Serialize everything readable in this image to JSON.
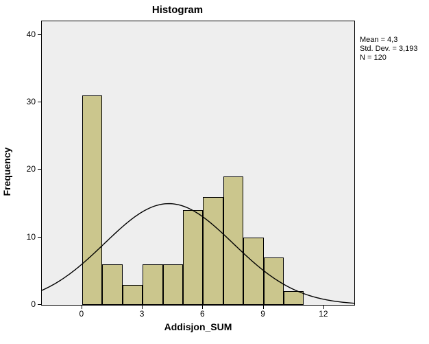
{
  "chart": {
    "type": "histogram",
    "title": "Histogram",
    "title_fontsize": 15,
    "xlabel": "Addisjon_SUM",
    "ylabel": "Frequency",
    "label_fontsize": 14,
    "background_color": "#ffffff",
    "plot_background": "#eeeeee",
    "border_color": "#000000",
    "bar_color": "#cbc68d",
    "bar_border": "#000000",
    "curve_color": "#000000",
    "curve_width": 1.4,
    "x_min": -2.0,
    "x_max": 13.5,
    "y_min": 0,
    "y_max": 42,
    "x_ticks": [
      0,
      3,
      6,
      9,
      12
    ],
    "y_ticks": [
      0,
      10,
      20,
      30,
      40
    ],
    "tick_fontsize": 12,
    "bars": [
      {
        "x_start": 0,
        "x_end": 1,
        "freq": 31
      },
      {
        "x_start": 1,
        "x_end": 2,
        "freq": 6
      },
      {
        "x_start": 2,
        "x_end": 3,
        "freq": 3
      },
      {
        "x_start": 3,
        "x_end": 4,
        "freq": 6
      },
      {
        "x_start": 4,
        "x_end": 5,
        "freq": 6
      },
      {
        "x_start": 5,
        "x_end": 6,
        "freq": 14
      },
      {
        "x_start": 6,
        "x_end": 7,
        "freq": 16
      },
      {
        "x_start": 7,
        "x_end": 8,
        "freq": 19
      },
      {
        "x_start": 8,
        "x_end": 9,
        "freq": 10
      },
      {
        "x_start": 9,
        "x_end": 10,
        "freq": 7
      },
      {
        "x_start": 10,
        "x_end": 11,
        "freq": 2
      }
    ],
    "normal_curve": {
      "mean": 4.3,
      "std_dev": 3.193,
      "n": 120,
      "bin_width": 1
    }
  },
  "stats": {
    "mean_label": "Mean = 4,3",
    "std_label": "Std. Dev. = 3,193",
    "n_label": "N = 120",
    "fontsize": 11
  }
}
